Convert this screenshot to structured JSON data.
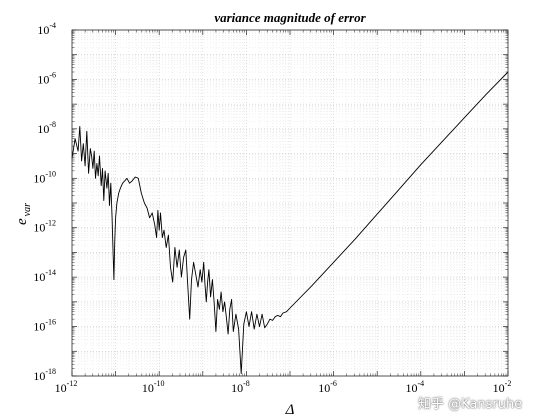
{
  "watermark": "知乎 @Kansruhe",
  "chart_data": {
    "type": "line",
    "title": "variance magnitude of error",
    "xlabel": "Δ",
    "ylabel": {
      "base": "e",
      "sub": "var"
    },
    "xscale": "log",
    "yscale": "log",
    "xlim_exp": [
      -12,
      -2
    ],
    "ylim_exp": [
      -18,
      -4
    ],
    "x_ticks": [
      {
        "base": "10",
        "exp": "-12"
      },
      {
        "base": "10",
        "exp": "-10"
      },
      {
        "base": "10",
        "exp": "-8"
      },
      {
        "base": "10",
        "exp": "-6"
      },
      {
        "base": "10",
        "exp": "-4"
      },
      {
        "base": "10",
        "exp": "-2"
      }
    ],
    "y_ticks": [
      {
        "base": "10",
        "exp": "-4"
      },
      {
        "base": "10",
        "exp": "-6"
      },
      {
        "base": "10",
        "exp": "-8"
      },
      {
        "base": "10",
        "exp": "-10"
      },
      {
        "base": "10",
        "exp": "-12"
      },
      {
        "base": "10",
        "exp": "-14"
      },
      {
        "base": "10",
        "exp": "-16"
      },
      {
        "base": "10",
        "exp": "-18"
      }
    ],
    "grid": true,
    "minor_grid": true,
    "line_color": "#000000",
    "series": [
      {
        "log10_x": [
          -12.0,
          -11.93,
          -11.86,
          -11.82,
          -11.78,
          -11.74,
          -11.7,
          -11.66,
          -11.62,
          -11.58,
          -11.55,
          -11.52,
          -11.49,
          -11.46,
          -11.43,
          -11.4,
          -11.37,
          -11.33,
          -11.3,
          -11.27,
          -11.24,
          -11.2,
          -11.17,
          -11.14,
          -11.11,
          -11.08,
          -11.06,
          -11.04,
          -11.02,
          -11.0,
          -10.97,
          -10.93,
          -10.89,
          -10.84,
          -10.79,
          -10.74,
          -10.68,
          -10.62,
          -10.55,
          -10.48,
          -10.41,
          -10.34,
          -10.28,
          -10.22,
          -10.16,
          -10.1,
          -10.06,
          -10.03,
          -10.0,
          -9.97,
          -9.93,
          -9.89,
          -9.84,
          -9.79,
          -9.74,
          -9.69,
          -9.64,
          -9.59,
          -9.54,
          -9.49,
          -9.44,
          -9.39,
          -9.34,
          -9.3,
          -9.26,
          -9.21,
          -9.16,
          -9.11,
          -9.06,
          -9.02,
          -8.98,
          -8.95,
          -8.92,
          -8.89,
          -8.86,
          -8.82,
          -8.78,
          -8.74,
          -8.7,
          -8.66,
          -8.62,
          -8.58,
          -8.54,
          -8.5,
          -8.46,
          -8.42,
          -8.38,
          -8.34,
          -8.3,
          -8.24,
          -8.18,
          -8.12,
          -8.06,
          -8.0,
          -7.94,
          -7.88,
          -7.82,
          -7.76,
          -7.7,
          -7.64,
          -7.58,
          -7.52,
          -7.46,
          -7.4,
          -7.34,
          -7.28,
          -7.22,
          -7.16,
          -7.08,
          -7.0,
          -6.5,
          -6.0,
          -5.5,
          -5.0,
          -4.5,
          -4.0,
          -3.5,
          -3.0,
          -2.5,
          -2.0
        ],
        "log10_y": [
          -9.2,
          -8.4,
          -8.9,
          -7.9,
          -9.3,
          -8.6,
          -9.5,
          -8.1,
          -9.8,
          -8.8,
          -9.1,
          -9.6,
          -8.9,
          -10.0,
          -9.4,
          -9.9,
          -9.1,
          -10.3,
          -9.6,
          -10.9,
          -9.7,
          -10.4,
          -9.8,
          -11.1,
          -10.2,
          -11.6,
          -12.9,
          -14.1,
          -12.6,
          -11.6,
          -11.0,
          -10.6,
          -10.4,
          -10.2,
          -10.1,
          -10.0,
          -10.2,
          -10.1,
          -9.95,
          -10.0,
          -10.6,
          -11.0,
          -11.2,
          -11.6,
          -11.4,
          -11.9,
          -12.4,
          -11.3,
          -12.1,
          -11.4,
          -12.4,
          -12.1,
          -12.8,
          -12.3,
          -13.6,
          -14.2,
          -12.8,
          -13.6,
          -12.9,
          -14.0,
          -13.2,
          -12.9,
          -14.5,
          -15.7,
          -14.1,
          -13.4,
          -13.9,
          -14.4,
          -13.7,
          -14.2,
          -13.4,
          -14.3,
          -15.0,
          -14.2,
          -13.7,
          -14.8,
          -14.1,
          -15.0,
          -16.2,
          -14.9,
          -15.3,
          -14.6,
          -15.4,
          -15.0,
          -15.6,
          -16.3,
          -15.3,
          -14.9,
          -16.2,
          -15.5,
          -16.1,
          -17.9,
          -15.9,
          -15.4,
          -16.0,
          -15.4,
          -16.1,
          -15.5,
          -16.0,
          -15.5,
          -16.05,
          -15.9,
          -15.7,
          -15.75,
          -15.6,
          -15.55,
          -15.6,
          -15.45,
          -15.4,
          -15.25,
          -14.35,
          -13.4,
          -12.45,
          -11.45,
          -10.45,
          -9.45,
          -8.5,
          -7.55,
          -6.6,
          -5.7
        ]
      }
    ]
  }
}
